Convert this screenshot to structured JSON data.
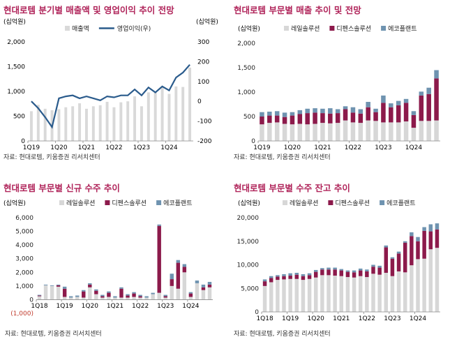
{
  "colors": {
    "title": "#b0245a",
    "rail": "#d7d7d7",
    "digital": "#8c1a4b",
    "eco": "#6f93b0",
    "bar": "#d9d9d9",
    "line": "#2a5b8c",
    "negative": "#c0392b"
  },
  "chart_data": [
    {
      "type": "bar",
      "title": "현대로템 분기별 매출액 및 영업이익 추이 전망",
      "ylabel_left": "(십억원)",
      "ylabel_right": "(십억원)",
      "ylim": [
        0,
        2000
      ],
      "ylim_right": [
        -200,
        300
      ],
      "yticks": [
        "0",
        "500",
        "1,000",
        "1,500",
        "2,000"
      ],
      "yticks_right": [
        "-200",
        "-100",
        "0",
        "100",
        "200",
        "300"
      ],
      "xtick_labels": [
        "1Q19",
        "1Q20",
        "1Q21",
        "1Q22",
        "1Q23",
        "1Q24"
      ],
      "categories": [
        "1Q19",
        "2Q19",
        "3Q19",
        "4Q19",
        "1Q20",
        "2Q20",
        "3Q20",
        "4Q20",
        "1Q21",
        "2Q21",
        "3Q21",
        "4Q21",
        "1Q22",
        "2Q22",
        "3Q22",
        "4Q22",
        "1Q23",
        "2Q23",
        "3Q23",
        "4Q23",
        "1Q24",
        "2Q24",
        "3Q24",
        "4Q24"
      ],
      "legend": [
        "매출액",
        "영업이익(우)"
      ],
      "series": [
        {
          "name": "매출액",
          "kind": "bar",
          "values": [
            600,
            730,
            650,
            620,
            640,
            680,
            700,
            760,
            650,
            700,
            720,
            790,
            680,
            780,
            800,
            900,
            700,
            980,
            980,
            1100,
            950,
            1100,
            1090,
            1480
          ]
        },
        {
          "name": "영업이익(우)",
          "kind": "line",
          "axis": "right",
          "values": [
            0,
            -35,
            -80,
            -130,
            15,
            25,
            30,
            15,
            25,
            15,
            5,
            25,
            20,
            30,
            30,
            60,
            30,
            70,
            45,
            75,
            55,
            120,
            145,
            185
          ]
        }
      ],
      "source": "자료: 현대로템, 키움증권 리서치센터"
    },
    {
      "type": "bar",
      "stacked": true,
      "title": "현대로템 부문별 매출 추이 및 전망",
      "ylabel": "(십억원)",
      "ylim": [
        0,
        2000
      ],
      "yticks": [
        "0",
        "500",
        "1,000",
        "1,500",
        "2,000"
      ],
      "xtick_labels": [
        "1Q19",
        "1Q20",
        "1Q21",
        "1Q22",
        "1Q23",
        "1Q24"
      ],
      "categories": [
        "1Q19",
        "2Q19",
        "3Q19",
        "4Q19",
        "1Q20",
        "2Q20",
        "3Q20",
        "4Q20",
        "1Q21",
        "2Q21",
        "3Q21",
        "4Q21",
        "1Q22",
        "2Q22",
        "3Q22",
        "4Q22",
        "1Q23",
        "2Q23",
        "3Q23",
        "4Q23",
        "1Q24",
        "2Q24",
        "3Q24",
        "4Q24"
      ],
      "series": [
        {
          "name": "레일솔루션",
          "values": [
            340,
            370,
            380,
            350,
            340,
            350,
            340,
            350,
            370,
            360,
            370,
            420,
            380,
            370,
            420,
            410,
            380,
            380,
            380,
            400,
            270,
            410,
            410,
            420
          ]
        },
        {
          "name": "디펜스솔루션",
          "values": [
            160,
            150,
            140,
            140,
            180,
            200,
            230,
            230,
            200,
            200,
            200,
            230,
            200,
            190,
            270,
            180,
            400,
            310,
            350,
            380,
            260,
            520,
            550,
            860
          ]
        },
        {
          "name": "에코플랜트",
          "values": [
            90,
            80,
            90,
            90,
            70,
            80,
            90,
            90,
            90,
            110,
            80,
            60,
            110,
            90,
            110,
            70,
            150,
            80,
            90,
            80,
            80,
            80,
            130,
            170
          ]
        }
      ],
      "source": "자료: 현대로템, 키움증권 리서치센터"
    },
    {
      "type": "bar",
      "stacked": true,
      "title": "현대로템 부문별 신규 수주 추이",
      "ylabel": "(십억원)",
      "ylim": [
        -1000,
        6000
      ],
      "yticks": [
        "(1,000)",
        "0",
        "1,000",
        "2,000",
        "3,000",
        "4,000",
        "5,000",
        "6,000"
      ],
      "xtick_labels": [
        "1Q18",
        "1Q19",
        "1Q20",
        "1Q21",
        "1Q22",
        "1Q23",
        "1Q24"
      ],
      "categories": [
        "1Q18",
        "2Q18",
        "3Q18",
        "4Q18",
        "1Q19",
        "2Q19",
        "3Q19",
        "4Q19",
        "1Q20",
        "2Q20",
        "3Q20",
        "4Q20",
        "1Q21",
        "2Q21",
        "3Q21",
        "4Q21",
        "1Q22",
        "2Q22",
        "3Q22",
        "4Q22",
        "1Q23",
        "2Q23",
        "3Q23",
        "4Q23",
        "1Q24",
        "2Q24",
        "3Q24",
        "4Q24"
      ],
      "series": [
        {
          "name": "레일솔루션",
          "values": [
            250,
            1050,
            1000,
            950,
            200,
            150,
            200,
            150,
            900,
            400,
            150,
            200,
            150,
            150,
            150,
            200,
            150,
            150,
            400,
            500,
            150,
            1000,
            800,
            2000,
            200,
            1200,
            700,
            900
          ]
        },
        {
          "name": "디펜스솔루션",
          "values": [
            50,
            0,
            0,
            100,
            600,
            0,
            0,
            450,
            200,
            250,
            100,
            300,
            0,
            650,
            150,
            250,
            100,
            0,
            0,
            4900,
            100,
            500,
            1900,
            400,
            250,
            0,
            200,
            200
          ]
        },
        {
          "name": "에코플랜트",
          "values": [
            50,
            50,
            50,
            50,
            150,
            100,
            100,
            100,
            100,
            100,
            100,
            100,
            100,
            100,
            100,
            100,
            100,
            100,
            100,
            100,
            100,
            400,
            200,
            200,
            100,
            200,
            200,
            200
          ]
        }
      ],
      "source": "자료: 현대로템, 키움증권 리서치센터"
    },
    {
      "type": "bar",
      "stacked": true,
      "title": "현대로템 부문별 수주 잔고 추이",
      "ylabel": "(십억원)",
      "ylim": [
        0,
        20000
      ],
      "yticks": [
        "0",
        "5,000",
        "10,000",
        "15,000",
        "20,000"
      ],
      "xtick_labels": [
        "1Q18",
        "1Q19",
        "1Q20",
        "1Q21",
        "1Q22",
        "1Q23",
        "1Q24"
      ],
      "categories": [
        "1Q18",
        "2Q18",
        "3Q18",
        "4Q18",
        "1Q19",
        "2Q19",
        "3Q19",
        "4Q19",
        "1Q20",
        "2Q20",
        "3Q20",
        "4Q20",
        "1Q21",
        "2Q21",
        "3Q21",
        "4Q21",
        "1Q22",
        "2Q22",
        "3Q22",
        "4Q22",
        "1Q23",
        "2Q23",
        "3Q23",
        "4Q23",
        "1Q24",
        "2Q24",
        "3Q24",
        "4Q24"
      ],
      "series": [
        {
          "name": "레일솔루션",
          "values": [
            5500,
            6300,
            6800,
            6900,
            7000,
            7000,
            6800,
            7000,
            7300,
            7800,
            7800,
            7700,
            7600,
            7400,
            7300,
            7600,
            7400,
            8100,
            7900,
            8300,
            7600,
            8600,
            8400,
            9900,
            11200,
            11300,
            13300,
            13600
          ]
        },
        {
          "name": "디펜스솔루션",
          "values": [
            1000,
            900,
            700,
            700,
            700,
            900,
            800,
            800,
            1200,
            1200,
            1200,
            1300,
            1200,
            1100,
            1100,
            1200,
            1200,
            1500,
            1500,
            5400,
            3700,
            3800,
            6300,
            6200,
            3800,
            5900,
            3800,
            3900
          ]
        },
        {
          "name": "에코플랜트",
          "values": [
            400,
            400,
            300,
            400,
            500,
            400,
            400,
            400,
            400,
            300,
            400,
            400,
            300,
            300,
            400,
            400,
            400,
            400,
            400,
            400,
            300,
            400,
            300,
            800,
            900,
            800,
            1500,
            1300
          ]
        }
      ],
      "source": "자료: 현대로템, 키움증권 리서치센터"
    }
  ]
}
